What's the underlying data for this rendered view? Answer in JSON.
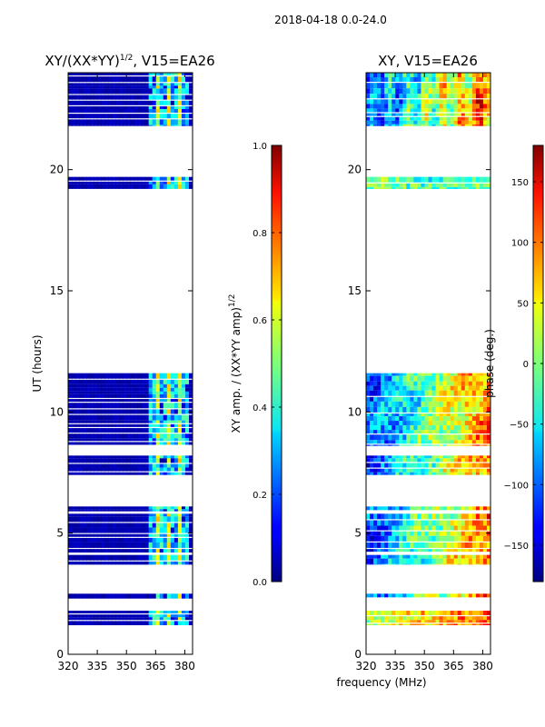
{
  "suptitle": "2018-04-18 0.0-24.0",
  "chart_data": [
    {
      "type": "heatmap",
      "title_main": "XY/(XX*YY)",
      "title_exp": "1/2",
      "title_rest": ", V15=EA26",
      "ylabel": "UT (hours)",
      "xlim": [
        320,
        384
      ],
      "ylim": [
        0,
        24
      ],
      "xticks": [
        320,
        335,
        350,
        365,
        380
      ],
      "yticks": [
        0,
        5,
        10,
        15,
        20
      ],
      "colorbar": {
        "label_main": "XY amp. / (XX*YY amp)",
        "label_exp": "1/2",
        "range": [
          0.0,
          1.0
        ],
        "ticks": [
          "0.0",
          "0.2",
          "0.4",
          "0.6",
          "0.8",
          "1.0"
        ],
        "tick_values": [
          0.0,
          0.2,
          0.4,
          0.6,
          0.8,
          1.0
        ]
      },
      "data_blocks_hours": [
        [
          1.2,
          1.8
        ],
        [
          2.3,
          2.5
        ],
        [
          3.7,
          4.1
        ],
        [
          4.2,
          5.8
        ],
        [
          5.9,
          6.1
        ],
        [
          7.4,
          8.2
        ],
        [
          8.6,
          11.6
        ],
        [
          19.2,
          19.7
        ],
        [
          21.8,
          24.0
        ]
      ],
      "feature_band_mhz": [
        361,
        383
      ]
    },
    {
      "type": "heatmap",
      "title_main": "XY, V15=EA26",
      "xlabel": "frequency (MHz)",
      "xlim": [
        320,
        384
      ],
      "ylim": [
        0,
        24
      ],
      "xticks": [
        320,
        335,
        350,
        365,
        380
      ],
      "yticks": [
        0,
        5,
        10,
        15,
        20
      ],
      "colorbar": {
        "label": "phase (deg.)",
        "range": [
          -180,
          180
        ],
        "ticks": [
          "150",
          "100",
          "50",
          "0",
          "−50",
          "−100",
          "−150"
        ],
        "tick_values": [
          150,
          100,
          50,
          0,
          -50,
          -100,
          -150
        ]
      },
      "data_blocks_hours": [
        [
          1.2,
          1.8
        ],
        [
          2.3,
          2.5
        ],
        [
          3.7,
          4.1
        ],
        [
          4.2,
          5.8
        ],
        [
          5.9,
          6.1
        ],
        [
          7.4,
          8.2
        ],
        [
          8.6,
          11.6
        ],
        [
          19.2,
          19.7
        ],
        [
          21.8,
          24.0
        ]
      ]
    }
  ]
}
